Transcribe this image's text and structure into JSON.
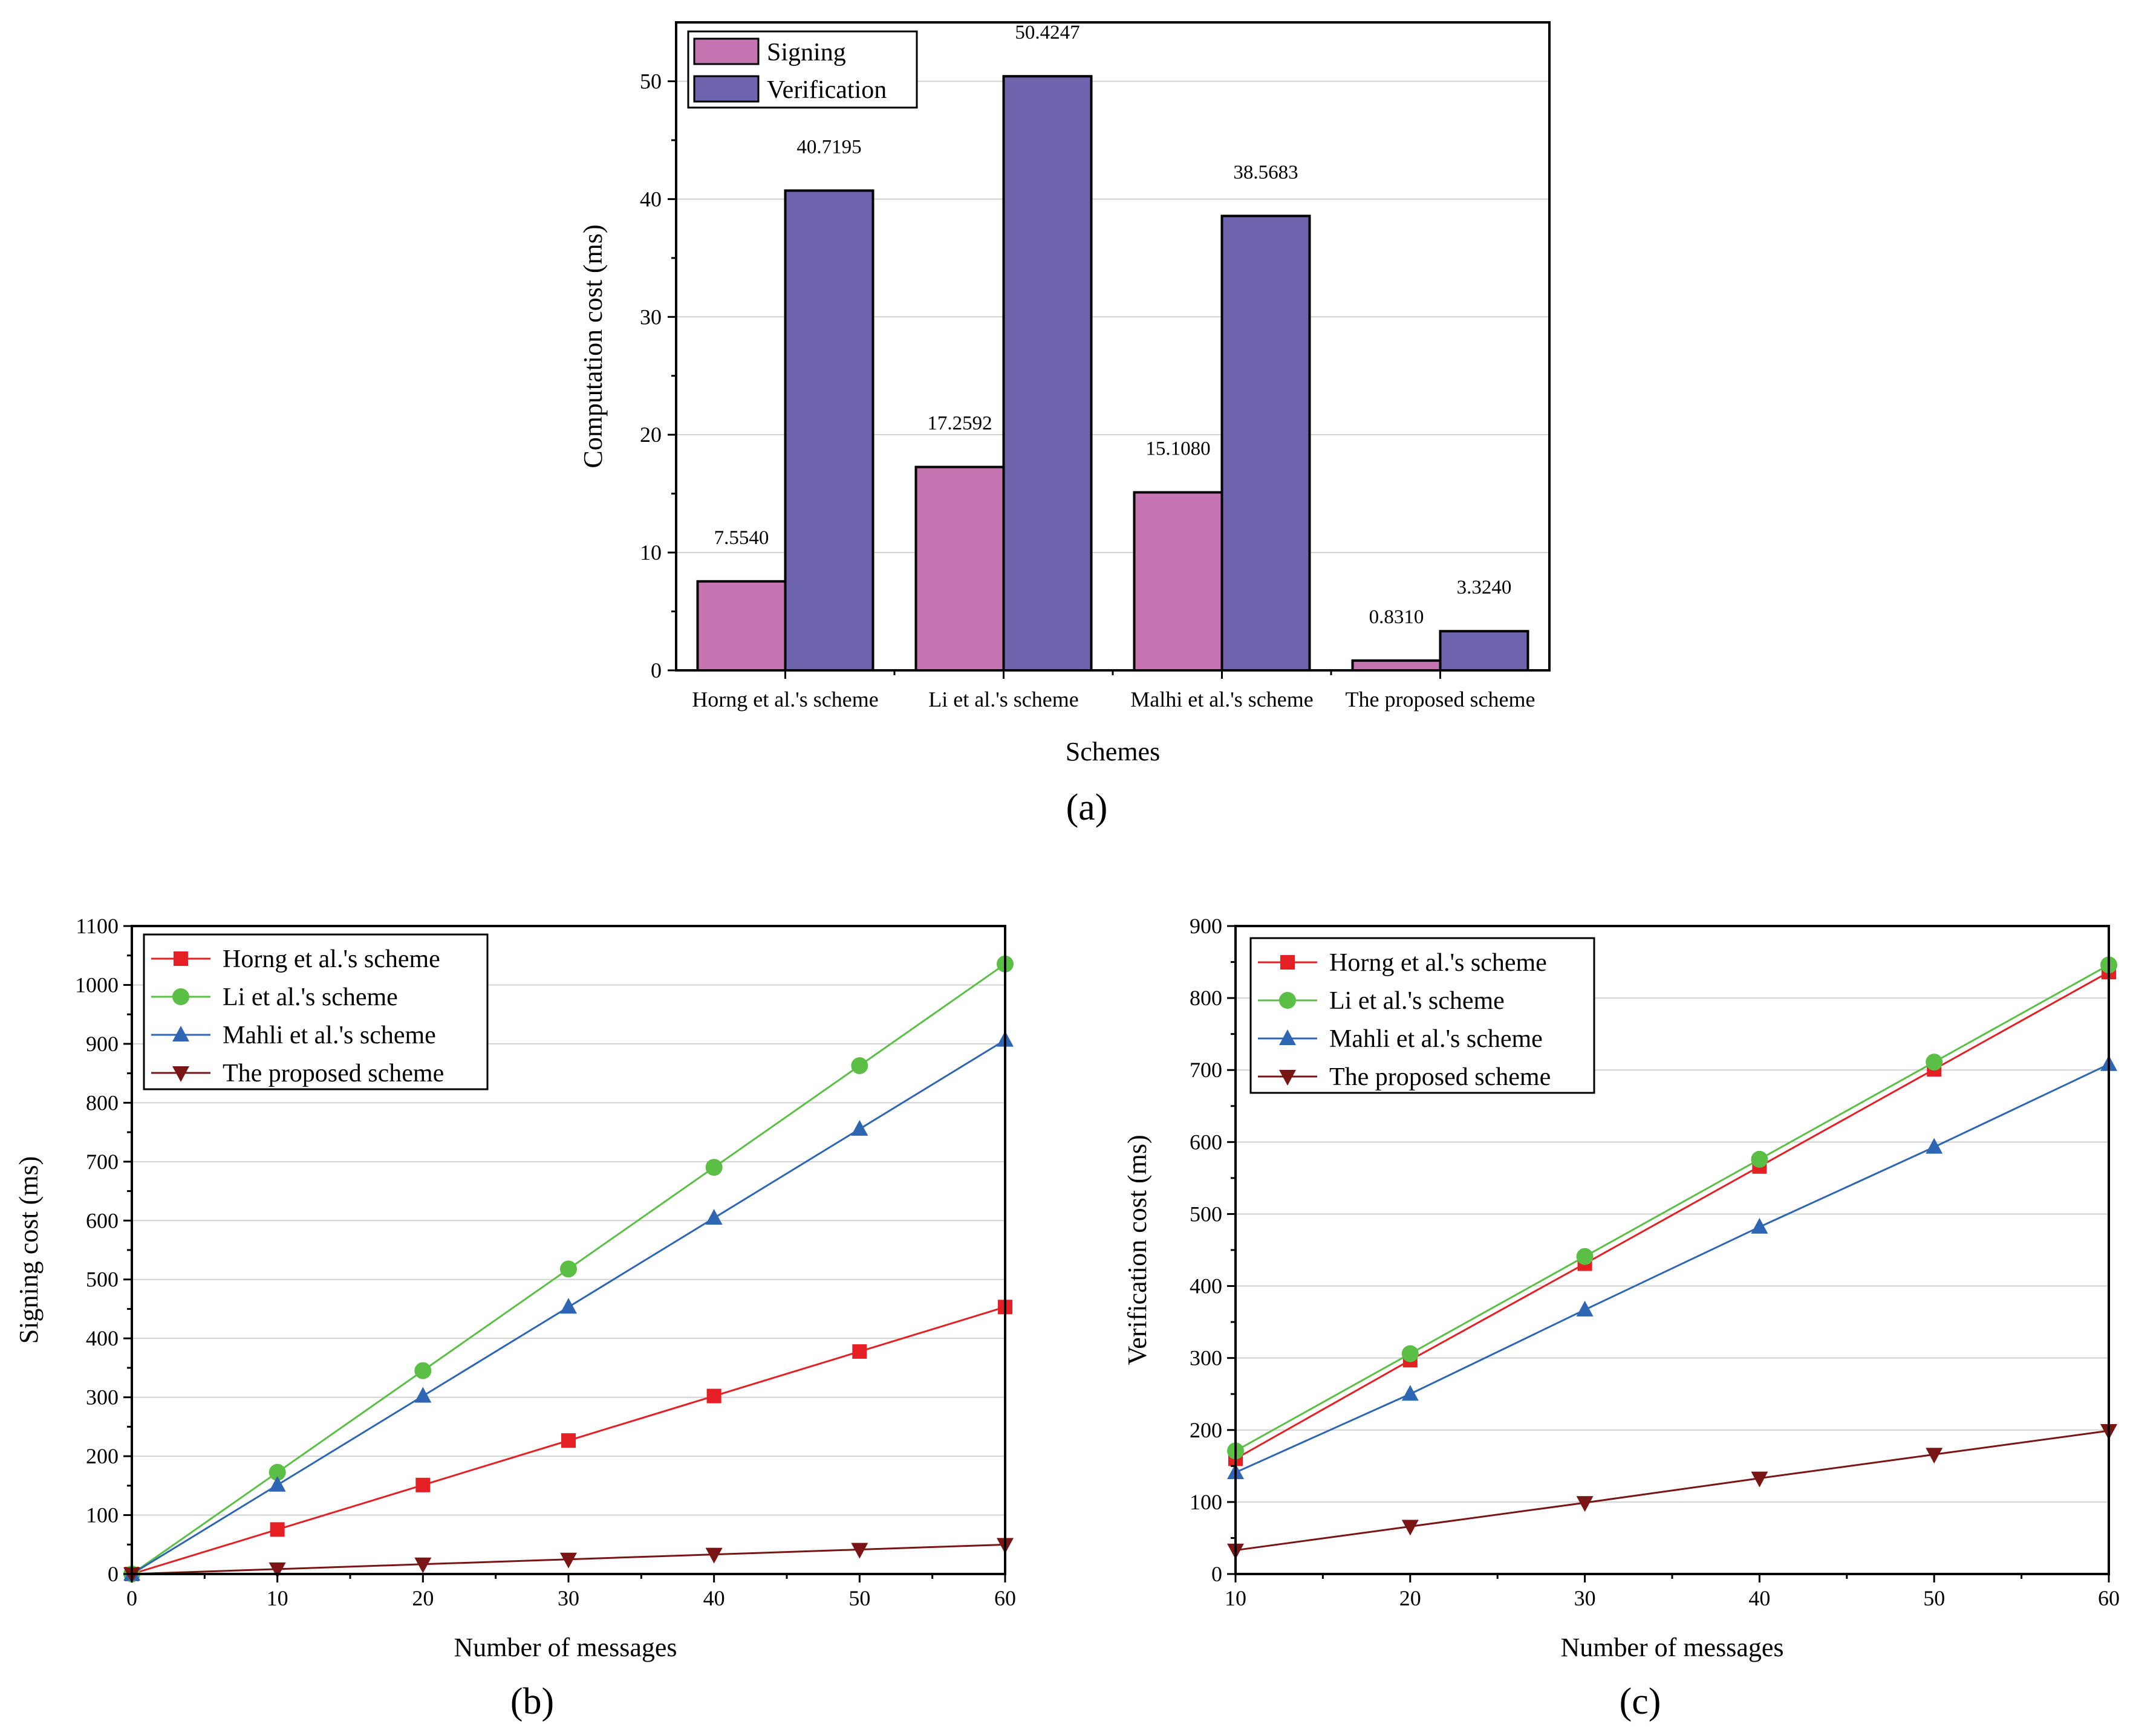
{
  "colors": {
    "signing": "#c774b2",
    "verification": "#6d64ad",
    "horng": "#e42025",
    "li": "#5bbf45",
    "mahli": "#2f66b3",
    "proposed": "#7a1515"
  },
  "chart_data": [
    {
      "type": "bar",
      "panel_label": "(a)",
      "title": "",
      "xlabel": "Schemes",
      "ylabel": "Computation cost (ms)",
      "ylim": [
        0,
        55
      ],
      "yticks": [
        "0",
        "10",
        "20",
        "30",
        "40",
        "50"
      ],
      "categories": [
        "Horng et al.'s scheme",
        "Li et al.'s scheme",
        "Malhi et al.'s scheme",
        "The proposed scheme"
      ],
      "series": [
        {
          "name": "Signing",
          "values": [
            7.554,
            17.2592,
            15.108,
            0.831
          ],
          "labels": [
            "7.5540",
            "17.2592",
            "15.1080",
            "0.8310"
          ]
        },
        {
          "name": "Verification",
          "values": [
            40.7195,
            50.4247,
            38.5683,
            3.324
          ],
          "labels": [
            "40.7195",
            "50.4247",
            "38.5683",
            "3.3240"
          ]
        }
      ],
      "legend": "top-left",
      "grid": true
    },
    {
      "type": "line",
      "panel_label": "(b)",
      "xlabel": "Number of messages",
      "ylabel": "Signing cost (ms)",
      "xlim": [
        0,
        60
      ],
      "ylim": [
        0,
        1100
      ],
      "xticks": [
        "0",
        "10",
        "20",
        "30",
        "40",
        "50",
        "60"
      ],
      "yticks": [
        "0",
        "100",
        "200",
        "300",
        "400",
        "500",
        "600",
        "700",
        "800",
        "900",
        "1000",
        "1100"
      ],
      "x": [
        0,
        10,
        20,
        30,
        40,
        50,
        60
      ],
      "series": [
        {
          "name": "Horng et al.'s scheme",
          "marker": "square",
          "values": [
            0,
            75.54,
            151.08,
            226.62,
            302.16,
            377.7,
            453.24
          ]
        },
        {
          "name": "Li et al.'s scheme",
          "marker": "circle",
          "values": [
            0,
            172.59,
            345.18,
            517.78,
            690.37,
            862.96,
            1035.55
          ]
        },
        {
          "name": "Mahli et al.'s scheme",
          "marker": "triangle-up",
          "values": [
            0,
            151.08,
            302.16,
            453.24,
            604.32,
            755.4,
            906.48
          ]
        },
        {
          "name": "The proposed scheme",
          "marker": "triangle-down",
          "values": [
            0,
            8.31,
            16.62,
            24.93,
            33.24,
            41.55,
            49.86
          ]
        }
      ],
      "legend": "top-left",
      "grid": true
    },
    {
      "type": "line",
      "panel_label": "(c)",
      "xlabel": "Number of messages",
      "ylabel": "Verification cost (ms)",
      "xlim": [
        10,
        60
      ],
      "ylim": [
        0,
        900
      ],
      "xticks": [
        "10",
        "20",
        "30",
        "40",
        "50",
        "60"
      ],
      "yticks": [
        "0",
        "100",
        "200",
        "300",
        "400",
        "500",
        "600",
        "700",
        "800",
        "900"
      ],
      "x": [
        10,
        20,
        30,
        40,
        50,
        60
      ],
      "series": [
        {
          "name": "Horng et al.'s scheme",
          "marker": "square",
          "values": [
            160,
            297,
            431,
            566,
            701,
            836
          ]
        },
        {
          "name": "Li et al.'s scheme",
          "marker": "circle",
          "values": [
            171,
            306,
            441,
            576,
            711,
            846
          ]
        },
        {
          "name": "Mahli et al.'s scheme",
          "marker": "triangle-up",
          "values": [
            141,
            250,
            367,
            482,
            593,
            708
          ]
        },
        {
          "name": "The proposed scheme",
          "marker": "triangle-down",
          "values": [
            33,
            66,
            99,
            133,
            166,
            199
          ]
        }
      ],
      "legend": "top-left",
      "grid": true
    }
  ]
}
